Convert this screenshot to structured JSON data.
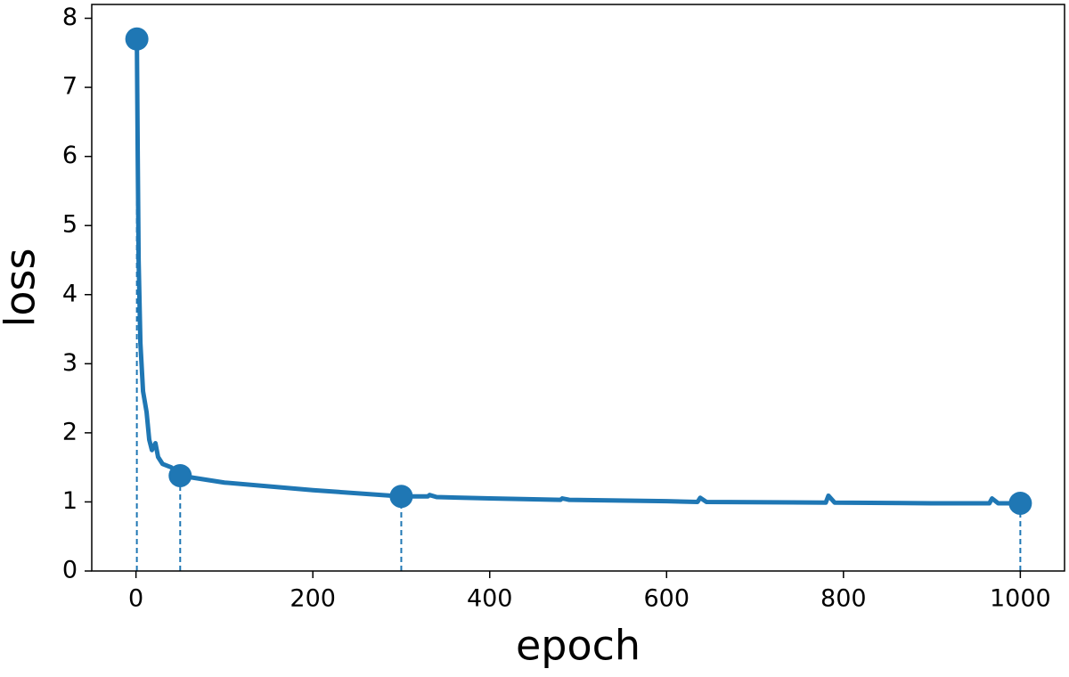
{
  "chart_data": {
    "type": "line",
    "xlabel": "epoch",
    "ylabel": "loss",
    "xlim": [
      -50,
      1050
    ],
    "ylim": [
      0,
      8.2
    ],
    "xticks": [
      0,
      200,
      400,
      600,
      800,
      1000
    ],
    "yticks": [
      0,
      1,
      2,
      3,
      4,
      5,
      6,
      7,
      8
    ],
    "grid": false,
    "series": [
      {
        "color": "#1f77b4",
        "x": [
          1,
          2,
          3,
          5,
          8,
          12,
          15,
          18,
          22,
          25,
          30,
          40,
          50,
          100,
          200,
          300,
          330,
          332,
          340,
          400,
          480,
          482,
          490,
          600,
          635,
          638,
          645,
          780,
          783,
          790,
          900,
          965,
          968,
          975,
          1000
        ],
        "values": [
          7.7,
          6.0,
          4.5,
          3.3,
          2.6,
          2.3,
          1.9,
          1.75,
          1.85,
          1.65,
          1.55,
          1.5,
          1.38,
          1.28,
          1.17,
          1.08,
          1.08,
          1.1,
          1.07,
          1.05,
          1.03,
          1.05,
          1.03,
          1.01,
          1.0,
          1.06,
          1.0,
          0.99,
          1.09,
          0.99,
          0.98,
          0.98,
          1.05,
          0.98,
          0.98
        ]
      }
    ],
    "markers": {
      "color": "#1f77b4",
      "x": [
        1,
        50,
        300,
        1000
      ],
      "values": [
        7.7,
        1.38,
        1.08,
        0.98
      ],
      "line_style": "dashed"
    }
  }
}
